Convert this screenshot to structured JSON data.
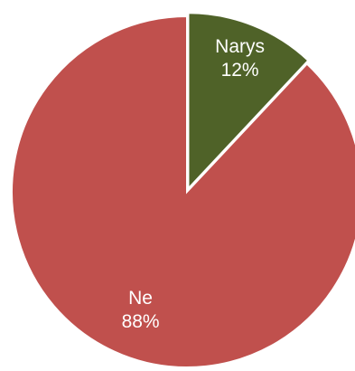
{
  "chart_data": {
    "type": "pie",
    "title": "",
    "slices": [
      {
        "label": "Narys",
        "value": 12,
        "value_label": "12%",
        "color": "#4F6228",
        "exploded": true
      },
      {
        "label": "Ne",
        "value": 88,
        "value_label": "88%",
        "color": "#C0504D",
        "exploded": false
      }
    ],
    "start_angle_deg": 0,
    "direction": "clockwise",
    "legend": "none"
  }
}
